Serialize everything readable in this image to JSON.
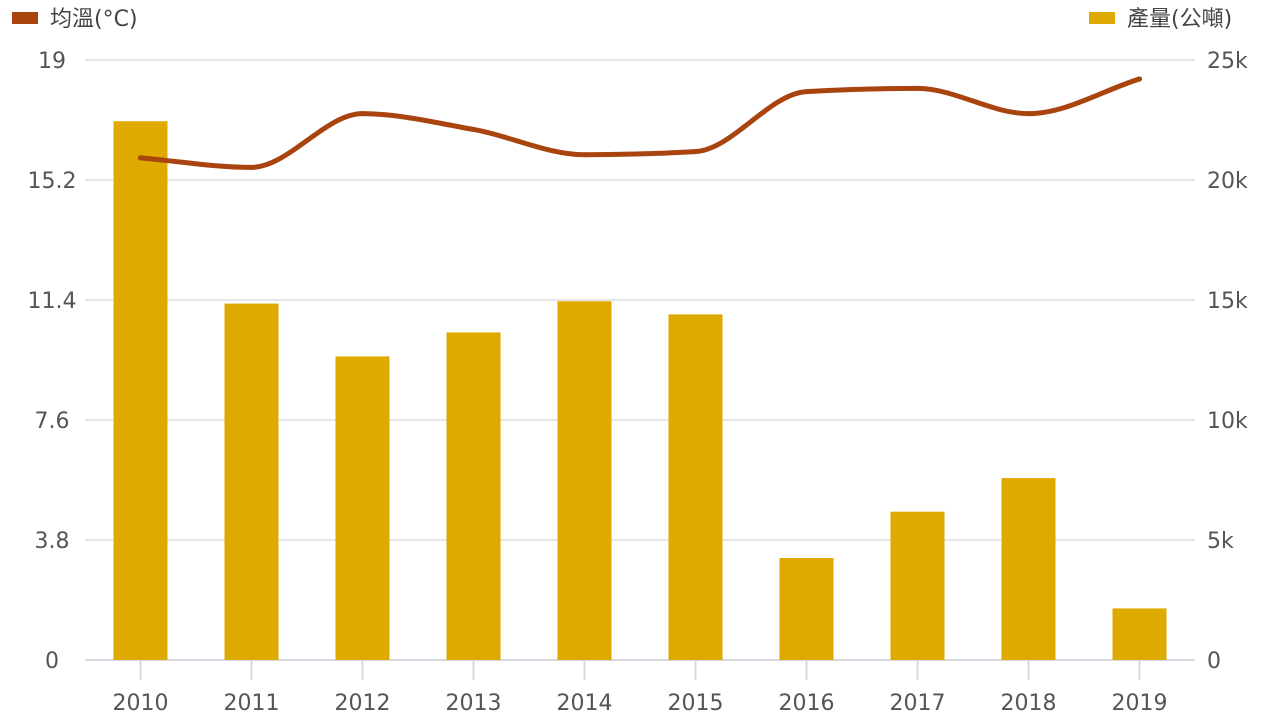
{
  "chart_data": {
    "type": "bar+line",
    "categories": [
      "2010",
      "2011",
      "2012",
      "2013",
      "2014",
      "2015",
      "2016",
      "2017",
      "2018",
      "2019"
    ],
    "series": [
      {
        "name": "產量(公噸)",
        "type": "bar",
        "axis": "right",
        "color": "#DFAA00",
        "values": [
          22450,
          14850,
          12650,
          13650,
          14950,
          14400,
          4250,
          6180,
          7580,
          2150
        ]
      },
      {
        "name": "均溫(°C)",
        "type": "line",
        "axis": "left",
        "color": "#A9440F",
        "values": [
          15.9,
          15.6,
          17.3,
          16.8,
          16.0,
          16.1,
          18.0,
          18.1,
          17.3,
          18.4
        ]
      }
    ],
    "y_left": {
      "min": 0,
      "max": 19,
      "ticks": [
        "0",
        "3.8",
        "7.6",
        "11.4",
        "15.2",
        "19"
      ]
    },
    "y_right": {
      "min": 0,
      "max": 25000,
      "ticks": [
        "0",
        "5k",
        "10k",
        "15k",
        "20k",
        "25k"
      ]
    },
    "grid": true,
    "legend_position": "top"
  },
  "legend": {
    "line_label": "均溫(°C)",
    "bar_label": "產量(公噸)"
  }
}
